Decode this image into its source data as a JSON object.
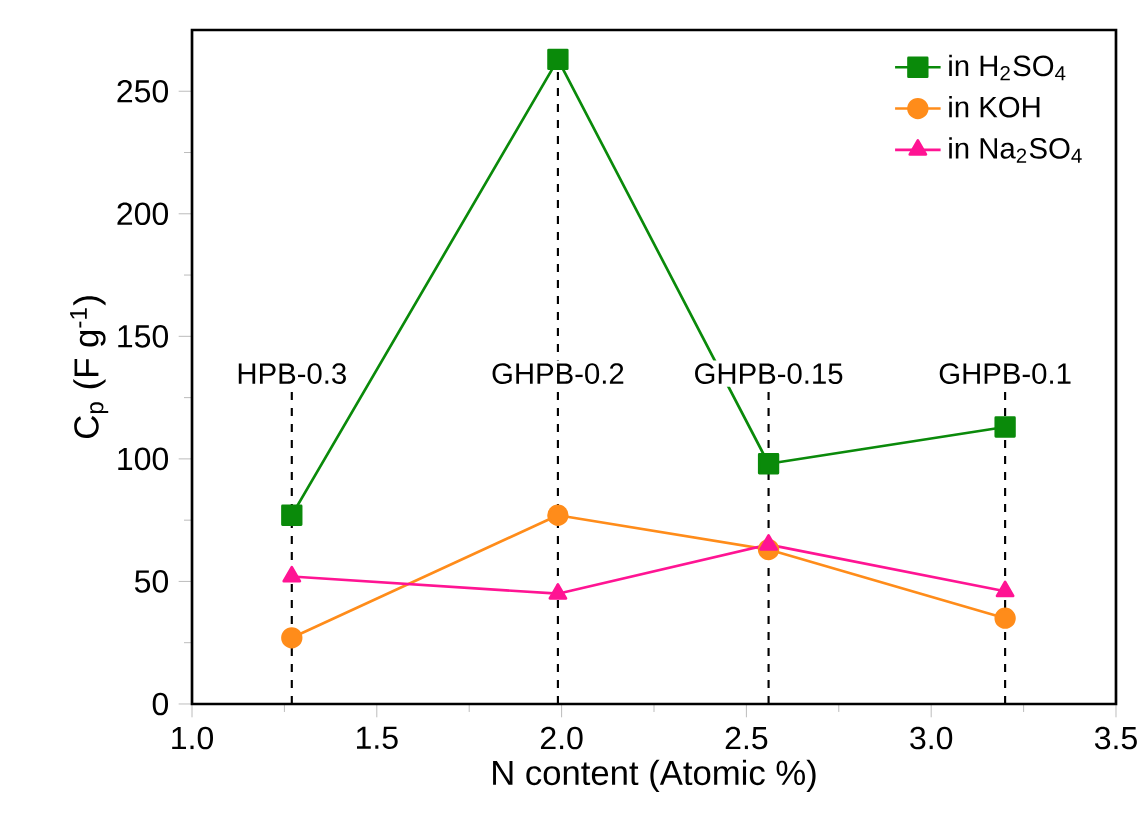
{
  "chart_data": {
    "type": "line",
    "xlabel": "N content (Atomic %)",
    "ylabel": "C$_{p}$ (F g$^{-1}$)",
    "xlim": [
      1.0,
      3.5
    ],
    "xticks": [
      {
        "value": 1.0,
        "label": "1.0"
      },
      1.5,
      {
        "value": 2.0,
        "label": "2.0"
      },
      2.5,
      {
        "value": 3.0,
        "label": "3.0"
      },
      3.5
    ],
    "ylim": [
      0,
      275
    ],
    "yticks": [
      0,
      50,
      100,
      150,
      200,
      250
    ],
    "x": [
      1.27,
      1.99,
      2.56,
      3.2
    ],
    "series": [
      {
        "name": "in H$_{2}$SO$_{4}$",
        "color": "#0a8a0a",
        "marker": "square",
        "values": [
          77,
          263,
          98,
          113
        ]
      },
      {
        "name": "in KOH",
        "color": "#ff8c1a",
        "marker": "circle",
        "values": [
          27,
          77,
          63,
          35
        ]
      },
      {
        "name": "in Na$_{2}$SO$_{4}$",
        "color": "#ff1493",
        "marker": "triangle",
        "values": [
          52,
          45,
          65,
          46
        ]
      }
    ],
    "ref_lines": [
      {
        "axis": "x",
        "value": 1.27,
        "color": "#000000",
        "line_style": "dashed",
        "label": "HPB-0.3"
      },
      {
        "axis": "x",
        "value": 1.99,
        "color": "#000000",
        "line_style": "dashed",
        "label": "GHPB-0.2"
      },
      {
        "axis": "x",
        "value": 2.56,
        "color": "#000000",
        "line_style": "dashed",
        "label": "GHPB-0.15"
      },
      {
        "axis": "x",
        "value": 3.2,
        "color": "#000000",
        "line_style": "dashed",
        "label": "GHPB-0.1"
      }
    ],
    "legend": "top right",
    "grid": false
  }
}
